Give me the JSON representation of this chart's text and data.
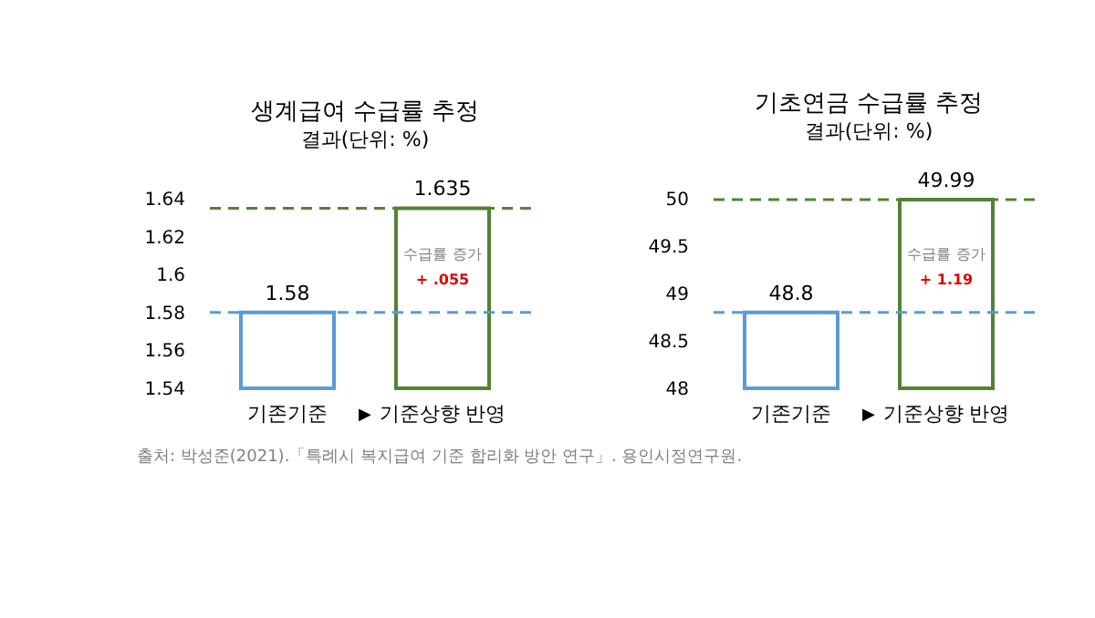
{
  "chart_data": [
    {
      "type": "bar",
      "title": "생계급여 수급률 추정",
      "subtitle": "결과(단위: %)",
      "categories": [
        "기존기준",
        "기준상향 반영"
      ],
      "values": [
        1.58,
        1.635
      ],
      "colors": [
        "#5b9bd5",
        "#548235"
      ],
      "ylim": [
        1.54,
        1.64
      ],
      "yticks": [
        1.54,
        1.56,
        1.58,
        1.6,
        1.62,
        1.64
      ],
      "data_labels": true,
      "ref_lines": [
        {
          "axis": "y",
          "value": 1.58,
          "color": "#5b9bd5",
          "line_style": "dashed"
        },
        {
          "axis": "y",
          "value": 1.635,
          "color": "#548235",
          "line_style": "dashed"
        }
      ],
      "annotations": [
        "수급률 증가",
        "+ .055",
        "▶",
        "출처: 박성준(2021).「특례시 복지급여 기준 합리화 방안 연구」. 용인시정연구원."
      ]
    },
    {
      "type": "bar",
      "title": "기초연금 수급률 추정",
      "subtitle": "결과(단위: %)",
      "categories": [
        "기존기준",
        "기준상향 반영"
      ],
      "values": [
        48.8,
        49.99
      ],
      "colors": [
        "#5b9bd5",
        "#548235"
      ],
      "ylim": [
        48,
        50
      ],
      "yticks": [
        48,
        48.5,
        49,
        49.5,
        50
      ],
      "data_labels": true,
      "ref_lines": [
        {
          "axis": "y",
          "value": 48.8,
          "color": "#5b9bd5",
          "line_style": "dashed"
        },
        {
          "axis": "y",
          "value": 49.99,
          "color": "#548235",
          "line_style": "dashed"
        }
      ],
      "annotations": [
        "수급률 증가",
        "+ 1.19",
        "▶"
      ]
    }
  ]
}
